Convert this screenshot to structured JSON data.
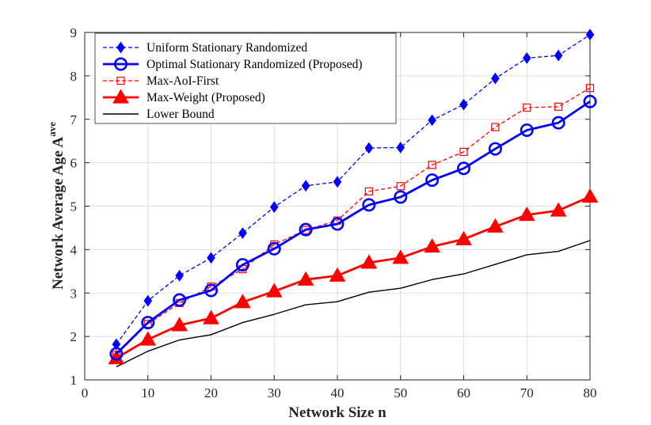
{
  "chart_data": {
    "type": "line",
    "title": "",
    "xlabel": "Network Size n",
    "ylabel": "Network Average Age A",
    "ylabel_superscript": "ave",
    "xlim": [
      0,
      80
    ],
    "ylim": [
      1,
      9
    ],
    "xticks": [
      0,
      10,
      20,
      30,
      40,
      50,
      60,
      70,
      80
    ],
    "yticks": [
      1,
      2,
      3,
      4,
      5,
      6,
      7,
      8,
      9
    ],
    "grid": true,
    "legend_position": "top-left",
    "x": [
      5,
      10,
      15,
      20,
      25,
      30,
      35,
      40,
      45,
      50,
      55,
      60,
      65,
      70,
      75,
      80
    ],
    "series": [
      {
        "name": "Uniform Stationary Randomized",
        "color": "#0000ff",
        "line": "dashed",
        "marker": "diamond",
        "values": [
          1.82,
          2.82,
          3.4,
          3.81,
          4.38,
          4.98,
          5.47,
          5.56,
          6.34,
          6.35,
          6.98,
          7.34,
          7.94,
          8.41,
          8.47,
          8.95
        ]
      },
      {
        "name": "Optimal Stationary Randomized (Proposed)",
        "color": "#0000ff",
        "line": "solid",
        "marker": "circle",
        "values": [
          1.6,
          2.32,
          2.84,
          3.06,
          3.65,
          4.02,
          4.46,
          4.59,
          5.03,
          5.21,
          5.6,
          5.87,
          6.32,
          6.75,
          6.92,
          7.41
        ]
      },
      {
        "name": "Max-AoI-First",
        "color": "#ff0000",
        "line": "dashed",
        "marker": "square",
        "values": [
          1.58,
          2.29,
          2.77,
          3.15,
          3.55,
          4.12,
          4.45,
          4.67,
          5.34,
          5.46,
          5.95,
          6.25,
          6.82,
          7.27,
          7.29,
          7.72
        ]
      },
      {
        "name": "Max-Weight (Proposed)",
        "color": "#ff0000",
        "line": "solid",
        "marker": "triangle",
        "values": [
          1.5,
          1.93,
          2.26,
          2.42,
          2.79,
          3.04,
          3.31,
          3.4,
          3.7,
          3.81,
          4.07,
          4.24,
          4.53,
          4.8,
          4.9,
          5.22
        ]
      },
      {
        "name": "Lower Bound",
        "color": "#000000",
        "line": "solid",
        "marker": "none",
        "values": [
          1.3,
          1.66,
          1.92,
          2.04,
          2.32,
          2.51,
          2.73,
          2.8,
          3.02,
          3.11,
          3.31,
          3.44,
          3.66,
          3.88,
          3.96,
          4.21
        ]
      }
    ]
  }
}
